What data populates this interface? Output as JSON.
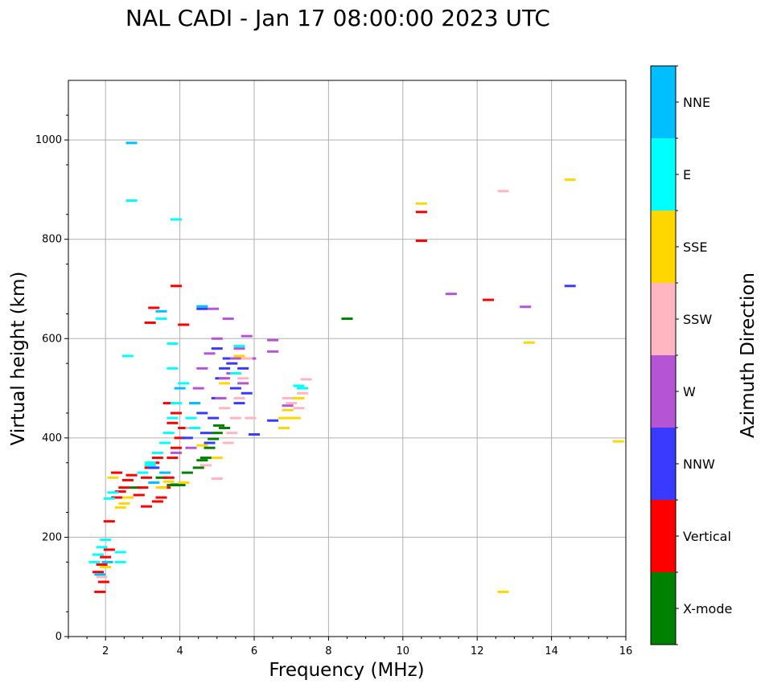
{
  "chart_data": {
    "type": "scatter",
    "title": "NAL CADI - Jan 17 08:00:00 2023 UTC",
    "xlabel": "Frequency (MHz)",
    "ylabel": "Virtual height (km)",
    "xlim": [
      1,
      16
    ],
    "ylim": [
      0,
      1120
    ],
    "xticks": [
      2,
      4,
      6,
      8,
      10,
      12,
      14,
      16
    ],
    "yticks": [
      0,
      200,
      400,
      600,
      800,
      1000
    ],
    "grid": true,
    "colorbar": {
      "label": "Azimuth Direction",
      "categories": [
        {
          "name": "X-mode",
          "color": "#008000"
        },
        {
          "name": "Vertical",
          "color": "#ff0000"
        },
        {
          "name": "NNW",
          "color": "#3a3aff"
        },
        {
          "name": "W",
          "color": "#b555d6"
        },
        {
          "name": "SSW",
          "color": "#ffb6c1"
        },
        {
          "name": "SSE",
          "color": "#ffd700"
        },
        {
          "name": "E",
          "color": "#00ffff"
        },
        {
          "name": "NNE",
          "color": "#00bfff"
        }
      ]
    },
    "series": [
      {
        "name": "X-mode",
        "points": [
          [
            3.8,
            305
          ],
          [
            3.9,
            306
          ],
          [
            4.0,
            305
          ],
          [
            4.5,
            340
          ],
          [
            4.6,
            355
          ],
          [
            4.7,
            360
          ],
          [
            4.8,
            380
          ],
          [
            4.9,
            398
          ],
          [
            5.0,
            410
          ],
          [
            5.05,
            425
          ],
          [
            2.8,
            300
          ],
          [
            3.5,
            320
          ],
          [
            8.5,
            640
          ],
          [
            4.2,
            330
          ],
          [
            5.2,
            420
          ]
        ]
      },
      {
        "name": "Vertical",
        "points": [
          [
            1.8,
            130
          ],
          [
            1.9,
            145
          ],
          [
            2.0,
            160
          ],
          [
            2.1,
            175
          ],
          [
            1.95,
            110
          ],
          [
            1.85,
            90
          ],
          [
            2.1,
            232
          ],
          [
            2.3,
            280
          ],
          [
            2.4,
            292
          ],
          [
            2.5,
            300
          ],
          [
            2.6,
            315
          ],
          [
            2.7,
            325
          ],
          [
            2.9,
            285
          ],
          [
            3.0,
            300
          ],
          [
            3.1,
            320
          ],
          [
            3.2,
            340
          ],
          [
            3.3,
            350
          ],
          [
            3.4,
            360
          ],
          [
            3.5,
            280
          ],
          [
            3.6,
            300
          ],
          [
            3.7,
            320
          ],
          [
            3.8,
            360
          ],
          [
            3.9,
            380
          ],
          [
            4.0,
            400
          ],
          [
            4.1,
            420
          ],
          [
            3.3,
            662
          ],
          [
            3.2,
            632
          ],
          [
            3.9,
            706
          ],
          [
            4.1,
            628
          ],
          [
            3.8,
            430
          ],
          [
            3.7,
            470
          ],
          [
            3.9,
            450
          ],
          [
            10.5,
            855
          ],
          [
            10.5,
            797
          ],
          [
            12.3,
            678
          ],
          [
            2.3,
            330
          ],
          [
            3.1,
            262
          ],
          [
            3.4,
            272
          ]
        ]
      },
      {
        "name": "NNW",
        "points": [
          [
            4.7,
            410
          ],
          [
            4.9,
            440
          ],
          [
            5.0,
            480
          ],
          [
            5.1,
            520
          ],
          [
            5.2,
            540
          ],
          [
            5.3,
            560
          ],
          [
            5.5,
            500
          ],
          [
            5.6,
            470
          ],
          [
            5.8,
            490
          ],
          [
            6.0,
            407
          ],
          [
            6.5,
            435
          ],
          [
            4.8,
            390
          ],
          [
            5.4,
            550
          ],
          [
            5.7,
            540
          ],
          [
            14.5,
            706
          ],
          [
            3.3,
            340
          ],
          [
            4.2,
            400
          ],
          [
            4.6,
            450
          ],
          [
            5.0,
            580
          ],
          [
            4.6,
            660
          ]
        ]
      },
      {
        "name": "W",
        "points": [
          [
            4.4,
            470
          ],
          [
            4.5,
            500
          ],
          [
            4.6,
            540
          ],
          [
            4.8,
            570
          ],
          [
            5.0,
            600
          ],
          [
            5.2,
            520
          ],
          [
            5.4,
            530
          ],
          [
            5.5,
            560
          ],
          [
            5.6,
            580
          ],
          [
            5.8,
            605
          ],
          [
            6.5,
            597
          ],
          [
            6.5,
            574
          ],
          [
            6.9,
            465
          ],
          [
            5.1,
            480
          ],
          [
            5.3,
            640
          ],
          [
            5.9,
            560
          ],
          [
            11.3,
            690
          ],
          [
            13.3,
            664
          ],
          [
            4.9,
            660
          ],
          [
            5.7,
            510
          ],
          [
            4.3,
            380
          ],
          [
            3.9,
            370
          ]
        ]
      },
      {
        "name": "SSW",
        "points": [
          [
            5.0,
            318
          ],
          [
            4.7,
            345
          ],
          [
            5.3,
            390
          ],
          [
            5.4,
            410
          ],
          [
            5.5,
            440
          ],
          [
            5.6,
            480
          ],
          [
            5.7,
            520
          ],
          [
            6.9,
            480
          ],
          [
            7.0,
            470
          ],
          [
            7.2,
            460
          ],
          [
            7.4,
            518
          ],
          [
            7.3,
            490
          ],
          [
            5.2,
            460
          ],
          [
            5.8,
            560
          ],
          [
            1.9,
            120
          ],
          [
            4.3,
            420
          ],
          [
            5.9,
            440
          ],
          [
            12.7,
            897
          ]
        ]
      },
      {
        "name": "SSE",
        "points": [
          [
            2.4,
            260
          ],
          [
            2.5,
            268
          ],
          [
            2.6,
            280
          ],
          [
            2.2,
            320
          ],
          [
            3.5,
            300
          ],
          [
            3.7,
            312
          ],
          [
            4.1,
            310
          ],
          [
            6.8,
            420
          ],
          [
            6.8,
            440
          ],
          [
            6.9,
            456
          ],
          [
            7.1,
            440
          ],
          [
            7.2,
            480
          ],
          [
            5.2,
            510
          ],
          [
            5.6,
            565
          ],
          [
            12.7,
            90
          ],
          [
            13.4,
            592
          ],
          [
            14.5,
            920
          ],
          [
            15.8,
            393
          ],
          [
            10.5,
            872
          ],
          [
            2.0,
            140
          ],
          [
            4.6,
            385
          ],
          [
            5.0,
            360
          ]
        ]
      },
      {
        "name": "E",
        "points": [
          [
            1.7,
            150
          ],
          [
            1.8,
            165
          ],
          [
            1.9,
            180
          ],
          [
            2.0,
            195
          ],
          [
            2.4,
            150
          ],
          [
            2.4,
            170
          ],
          [
            2.1,
            278
          ],
          [
            2.2,
            290
          ],
          [
            3.0,
            330
          ],
          [
            3.2,
            350
          ],
          [
            3.4,
            370
          ],
          [
            3.6,
            390
          ],
          [
            3.7,
            410
          ],
          [
            3.8,
            440
          ],
          [
            3.9,
            470
          ],
          [
            3.8,
            540
          ],
          [
            3.8,
            590
          ],
          [
            2.6,
            565
          ],
          [
            2.7,
            878
          ],
          [
            3.9,
            840
          ],
          [
            4.1,
            510
          ],
          [
            4.3,
            440
          ],
          [
            7.2,
            505
          ],
          [
            7.3,
            500
          ],
          [
            5.6,
            585
          ],
          [
            5.5,
            530
          ],
          [
            4.4,
            420
          ],
          [
            3.5,
            640
          ],
          [
            3.2,
            345
          ]
        ]
      },
      {
        "name": "NNE",
        "points": [
          [
            2.7,
            994
          ],
          [
            3.5,
            655
          ],
          [
            4.6,
            665
          ],
          [
            1.85,
            125
          ],
          [
            2.05,
            150
          ],
          [
            3.3,
            310
          ],
          [
            3.6,
            330
          ],
          [
            4.0,
            500
          ],
          [
            4.4,
            470
          ]
        ]
      }
    ]
  }
}
